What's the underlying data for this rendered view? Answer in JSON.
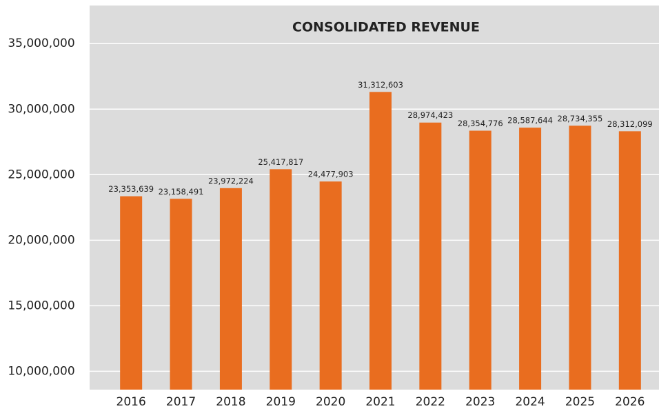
{
  "chart_data": {
    "type": "bar",
    "title": "CONSOLIDATED REVENUE",
    "categories": [
      "2016",
      "2017",
      "2018",
      "2019",
      "2020",
      "2021",
      "2022",
      "2023",
      "2024",
      "2025",
      "2026"
    ],
    "values": [
      23353639,
      23158491,
      23972224,
      25417817,
      24477903,
      31312603,
      28974423,
      28354776,
      28587644,
      28734355,
      28312099
    ],
    "value_labels": [
      "23,353,639",
      "23,158,491",
      "23,972,224",
      "25,417,817",
      "24,477,903",
      "31,312,603",
      "28,974,423",
      "28,354,776",
      "28,587,644",
      "28,734,355",
      "28,312,099"
    ],
    "color": "#e96d1f",
    "ylim": [
      8600000,
      37800000
    ],
    "yticks": [
      {
        "value": 10000000,
        "label": "10,000,000"
      },
      {
        "value": 15000000,
        "label": "15,000,000"
      },
      {
        "value": 20000000,
        "label": "20,000,000"
      },
      {
        "value": 25000000,
        "label": "25,000,000"
      },
      {
        "value": 30000000,
        "label": "30,000,000"
      },
      {
        "value": 35000000,
        "label": "35,000,000"
      }
    ],
    "grid": true
  }
}
